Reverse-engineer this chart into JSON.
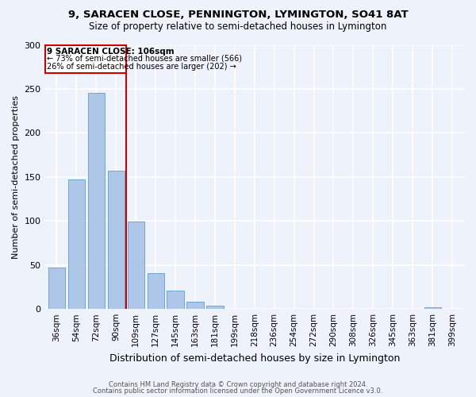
{
  "title": "9, SARACEN CLOSE, PENNINGTON, LYMINGTON, SO41 8AT",
  "subtitle": "Size of property relative to semi-detached houses in Lymington",
  "xlabel": "Distribution of semi-detached houses by size in Lymington",
  "ylabel": "Number of semi-detached properties",
  "categories": [
    "36sqm",
    "54sqm",
    "72sqm",
    "90sqm",
    "109sqm",
    "127sqm",
    "145sqm",
    "163sqm",
    "181sqm",
    "199sqm",
    "218sqm",
    "236sqm",
    "254sqm",
    "272sqm",
    "290sqm",
    "308sqm",
    "326sqm",
    "345sqm",
    "363sqm",
    "381sqm",
    "399sqm"
  ],
  "values": [
    47,
    147,
    245,
    157,
    99,
    41,
    21,
    8,
    4,
    0,
    0,
    0,
    0,
    0,
    0,
    0,
    0,
    0,
    0,
    2,
    0
  ],
  "bar_color": "#aec6e8",
  "bar_edge_color": "#5a9fd4",
  "property_line_color": "#cc0000",
  "annotation_box_color": "#cc0000",
  "annotation_text_line1": "9 SARACEN CLOSE: 106sqm",
  "annotation_text_line2": "← 73% of semi-detached houses are smaller (566)",
  "annotation_text_line3": "26% of semi-detached houses are larger (202) →",
  "ylim": [
    0,
    300
  ],
  "yticks": [
    0,
    50,
    100,
    150,
    200,
    250,
    300
  ],
  "background_color": "#eef2fb",
  "grid_color": "#ffffff",
  "footer_line1": "Contains HM Land Registry data © Crown copyright and database right 2024.",
  "footer_line2": "Contains public sector information licensed under the Open Government Licence v3.0."
}
